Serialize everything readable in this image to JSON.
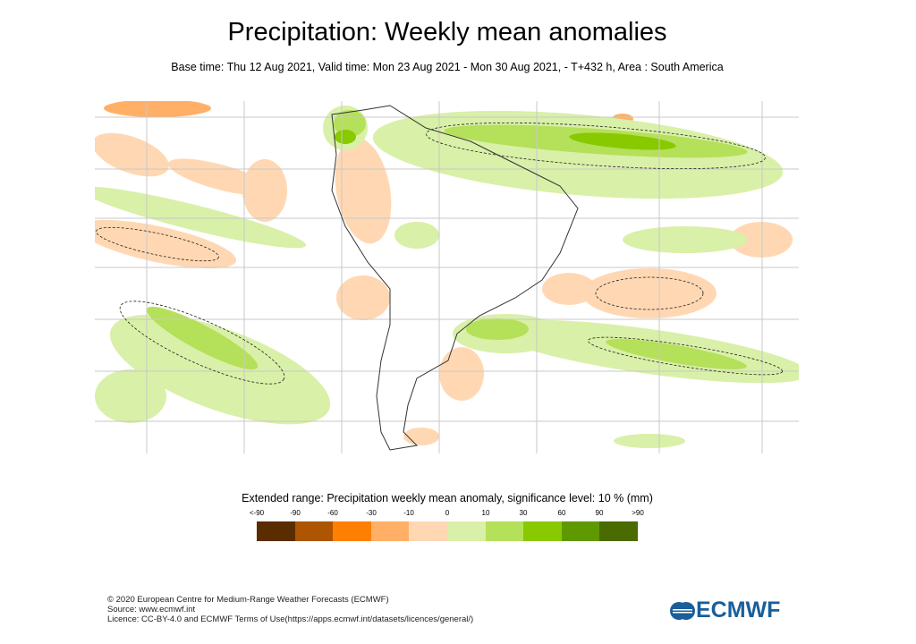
{
  "title": "Precipitation: Weekly mean anomalies",
  "subtitle": "Base time: Thu 12 Aug 2021, Valid time: Mon 23 Aug 2021 - Mon 30 Aug 2021, - T+432 h, Area : South America",
  "legend": {
    "title": "Extended range: Precipitation weekly mean anomaly, significance level: 10 % (mm)",
    "ticks": [
      "<-90",
      "-90",
      "-60",
      "-30",
      "-10",
      "0",
      "10",
      "30",
      "60",
      "90",
      ">90"
    ],
    "colors": [
      "#5a2d00",
      "#ad5500",
      "#ff7f00",
      "#ffb066",
      "#ffd8b3",
      "#d9f0a8",
      "#b5e05a",
      "#88c900",
      "#5f9900",
      "#4a6b00"
    ]
  },
  "footer": {
    "line1": "© 2020 European Centre for Medium-Range Weather Forecasts (ECMWF)",
    "line2": "Source: www.ecmwf.int",
    "line3": "Licence: CC-BY-4.0 and ECMWF Terms of Use(https://apps.ecmwf.int/datasets/licences/general/)"
  },
  "logo": {
    "text": "ECMWF",
    "color": "#1a5e9a"
  }
}
